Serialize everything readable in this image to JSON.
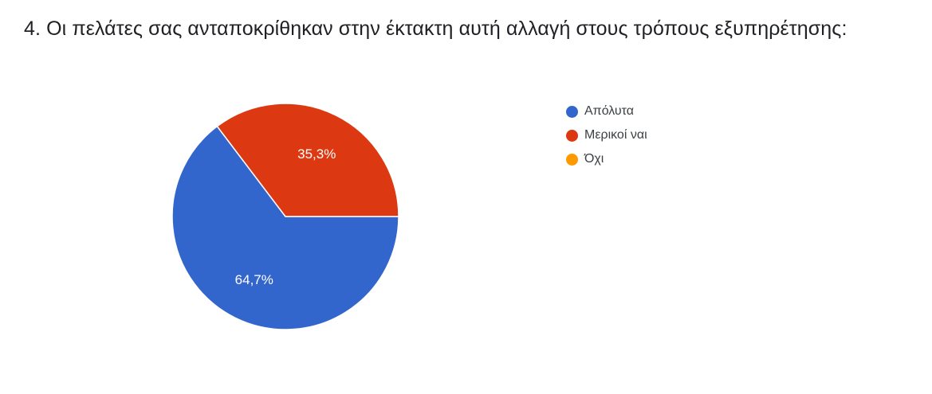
{
  "question": {
    "title": "4. Οι πελάτες σας ανταποκρίθηκαν στην έκτακτη αυτή αλλαγή στους τρόπους εξυπηρέτησης:"
  },
  "chart_data": {
    "type": "pie",
    "title": "",
    "start_direction": "east",
    "slices": [
      {
        "name": "Απόλυτα",
        "value": 64.7,
        "label": "64,7%",
        "color": "#3366cc"
      },
      {
        "name": "Μερικοί ναι",
        "value": 35.3,
        "label": "35,3%",
        "color": "#dc3912"
      },
      {
        "name": "Όχι",
        "value": 0,
        "label": "",
        "color": "#ff9900"
      }
    ],
    "legend_position": "right"
  }
}
